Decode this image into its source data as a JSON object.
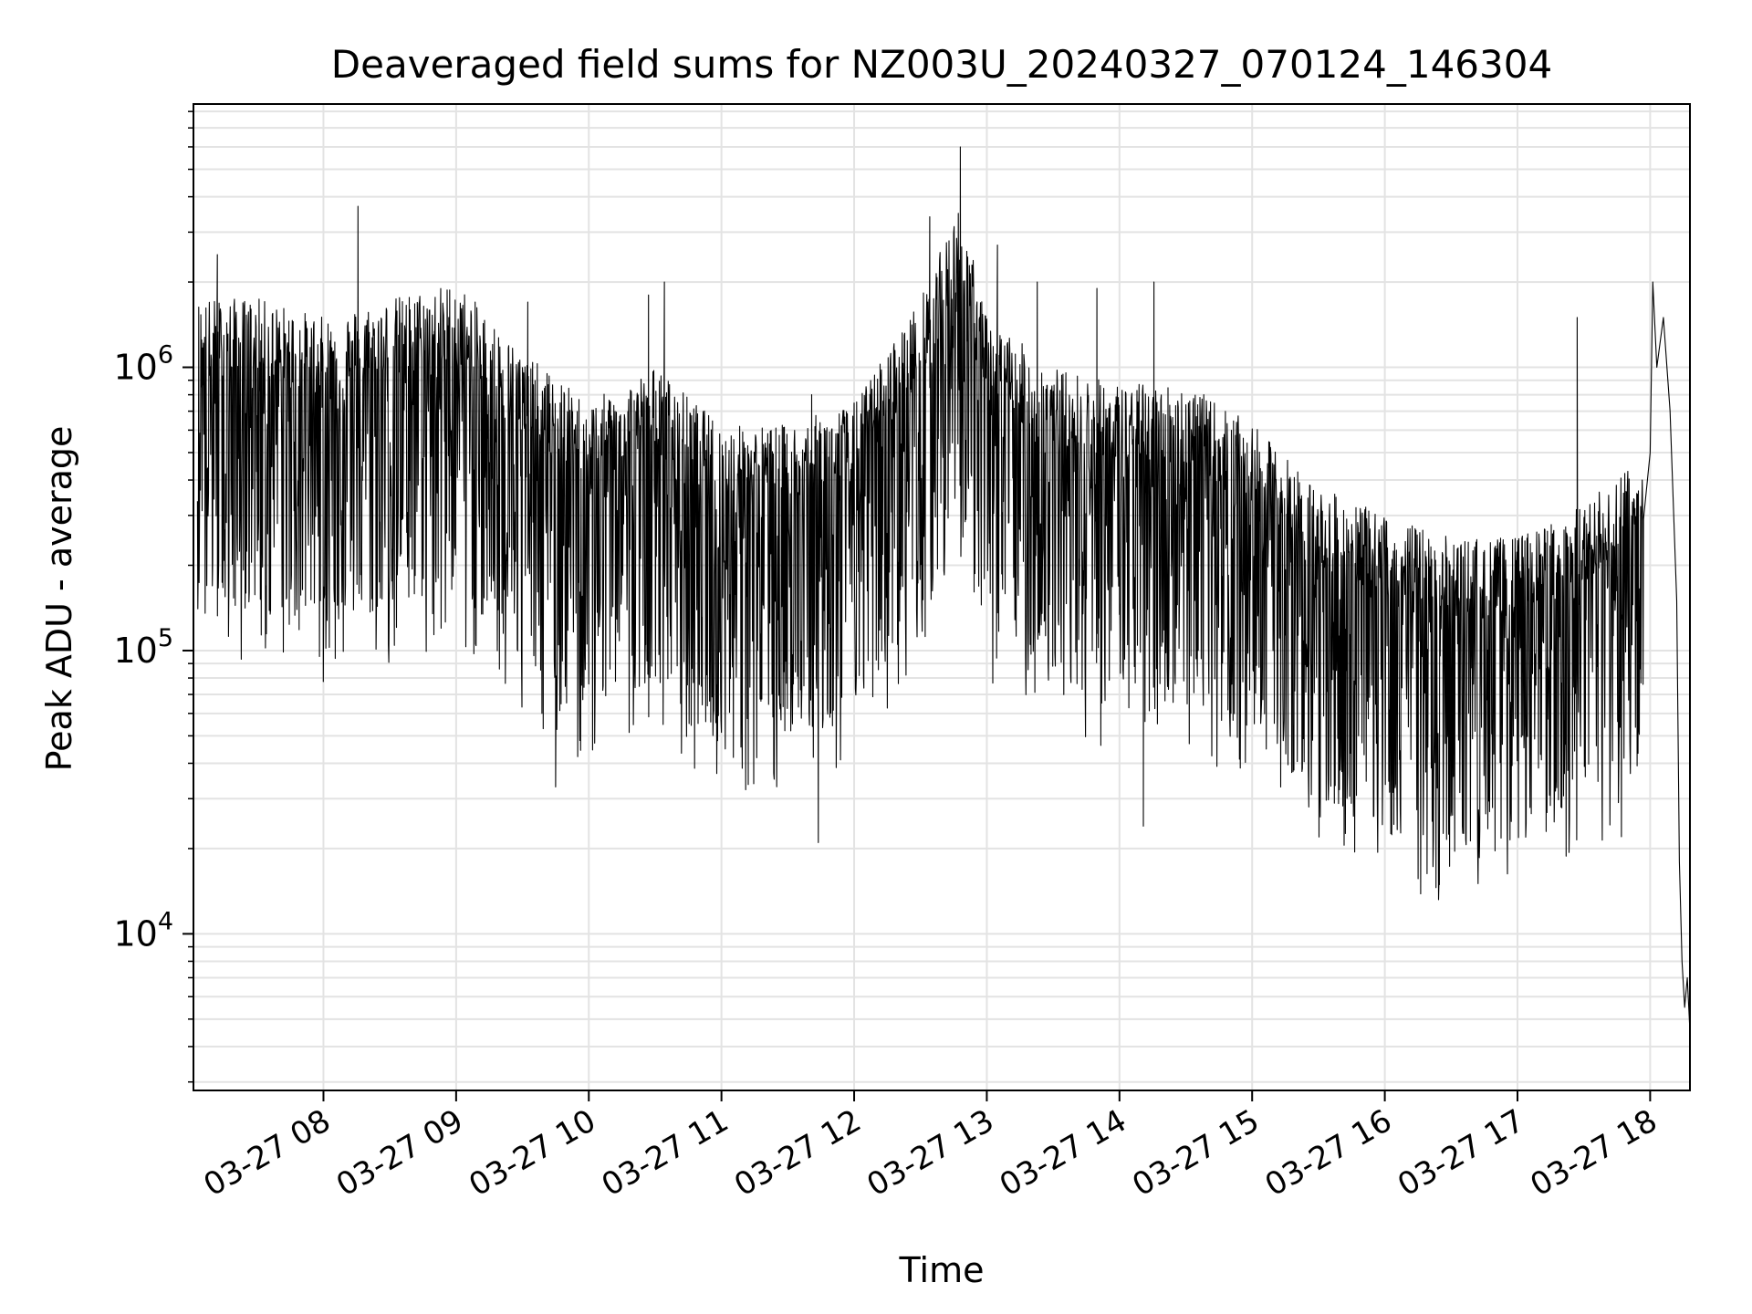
{
  "chart_data": {
    "type": "line",
    "title": "Deaveraged field sums for NZ003U_20240327_070124_146304",
    "xlabel": "Time",
    "ylabel": "Peak ADU - average",
    "yscale": "log",
    "ylim": [
      2800,
      8500000
    ],
    "xlim_hours": [
      7.02,
      18.3
    ],
    "grid": true,
    "x_ticks": [
      {
        "hour": 8,
        "label": "03-27 08"
      },
      {
        "hour": 9,
        "label": "03-27 09"
      },
      {
        "hour": 10,
        "label": "03-27 10"
      },
      {
        "hour": 11,
        "label": "03-27 11"
      },
      {
        "hour": 12,
        "label": "03-27 12"
      },
      {
        "hour": 13,
        "label": "03-27 13"
      },
      {
        "hour": 14,
        "label": "03-27 14"
      },
      {
        "hour": 15,
        "label": "03-27 15"
      },
      {
        "hour": 16,
        "label": "03-27 16"
      },
      {
        "hour": 17,
        "label": "03-27 17"
      },
      {
        "hour": 18,
        "label": "03-27 18"
      }
    ],
    "y_ticks": [
      {
        "value": 10000,
        "base": "10",
        "exp": "4"
      },
      {
        "value": 100000,
        "base": "10",
        "exp": "5"
      },
      {
        "value": 1000000,
        "base": "10",
        "exp": "6"
      }
    ],
    "series": [
      {
        "name": "Peak ADU - average",
        "color": "#000000",
        "envelope": {
          "hours": [
            7.05,
            7.5,
            8.0,
            8.5,
            9.0,
            9.5,
            10.0,
            10.5,
            11.0,
            11.5,
            12.0,
            12.5,
            12.8,
            13.0,
            13.5,
            14.0,
            14.5,
            15.0,
            15.5,
            16.0,
            16.5,
            17.0,
            17.5,
            17.95
          ],
          "median": [
            700000,
            700000,
            600000,
            700000,
            800000,
            450000,
            300000,
            400000,
            250000,
            250000,
            300000,
            700000,
            1500000,
            600000,
            400000,
            350000,
            350000,
            250000,
            150000,
            120000,
            100000,
            100000,
            130000,
            200000
          ]
        },
        "spikes": [
          {
            "hour": 7.2,
            "value": 2500000
          },
          {
            "hour": 8.26,
            "value": 3700000
          },
          {
            "hour": 9.54,
            "value": 1700000
          },
          {
            "hour": 10.45,
            "value": 1800000
          },
          {
            "hour": 10.57,
            "value": 2000000
          },
          {
            "hour": 11.68,
            "value": 800000
          },
          {
            "hour": 12.57,
            "value": 3400000
          },
          {
            "hour": 12.8,
            "value": 6000000
          },
          {
            "hour": 13.08,
            "value": 2700000
          },
          {
            "hour": 13.38,
            "value": 2000000
          },
          {
            "hour": 13.83,
            "value": 1900000
          },
          {
            "hour": 14.26,
            "value": 2000000
          },
          {
            "hour": 17.45,
            "value": 1500000
          },
          {
            "hour": 9.75,
            "value": 33000
          },
          {
            "hour": 11.73,
            "value": 21000
          },
          {
            "hour": 14.18,
            "value": 24000
          },
          {
            "hour": 16.95,
            "value": 29000
          }
        ],
        "tail": [
          {
            "hour": 18.0,
            "value": 500000
          },
          {
            "hour": 18.02,
            "value": 2000000
          },
          {
            "hour": 18.05,
            "value": 1000000
          },
          {
            "hour": 18.1,
            "value": 1500000
          },
          {
            "hour": 18.15,
            "value": 700000
          },
          {
            "hour": 18.2,
            "value": 150000
          },
          {
            "hour": 18.22,
            "value": 18000
          },
          {
            "hour": 18.24,
            "value": 8000
          },
          {
            "hour": 18.26,
            "value": 5500
          },
          {
            "hour": 18.28,
            "value": 7000
          },
          {
            "hour": 18.3,
            "value": 4500
          }
        ]
      }
    ]
  }
}
